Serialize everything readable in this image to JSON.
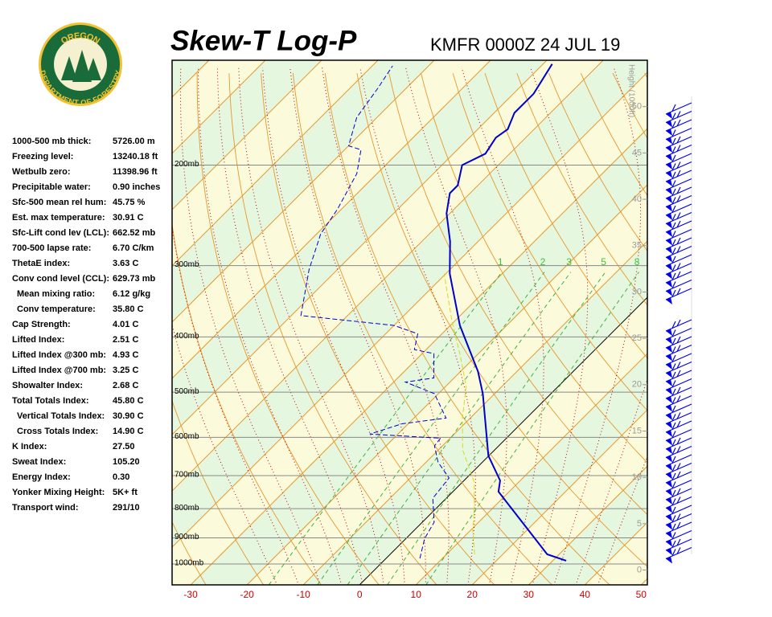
{
  "logo": {
    "top": "OREGON",
    "bottom": "DEPARTMENT OF FORESTRY"
  },
  "stats": [
    [
      "1000-500 mb thick:",
      "5726.00 m"
    ],
    [
      "Freezing level:",
      "13240.18 ft"
    ],
    [
      "Wetbulb zero:",
      "11398.96 ft"
    ],
    [
      "Precipitable water:",
      "0.90 inches"
    ],
    [
      "Sfc-500 mean rel hum:",
      "45.75 %"
    ],
    [
      "Est. max temperature:",
      "30.91 C"
    ],
    [
      "Sfc-Lift cond lev (LCL):",
      "662.52 mb"
    ],
    [
      "700-500 lapse rate:",
      "6.70 C/km"
    ],
    [
      "ThetaE index:",
      "3.63 C"
    ],
    [
      "Conv cond level (CCL):",
      "629.73 mb"
    ],
    [
      "Mean mixing ratio:",
      "6.12 g/kg"
    ],
    [
      "Conv temperature:",
      "35.80 C"
    ],
    [
      "Cap Strength:",
      "4.01 C"
    ],
    [
      "Lifted Index:",
      "2.51 C"
    ],
    [
      "Lifted Index @300 mb:",
      "4.93 C"
    ],
    [
      "Lifted Index @700 mb:",
      "3.25 C"
    ],
    [
      "Showalter Index:",
      "2.68 C"
    ],
    [
      "Total Totals Index:",
      "45.80 C"
    ],
    [
      "Vertical Totals Index:",
      "30.90 C"
    ],
    [
      "Cross Totals Index:",
      "14.90 C"
    ],
    [
      "K Index:",
      "27.50"
    ],
    [
      "Sweat Index:",
      "105.20"
    ],
    [
      "Energy Index:",
      "0.30"
    ],
    [
      "Yonker Mixing Height:",
      "5K+ ft"
    ],
    [
      "Transport wind:",
      "291/10"
    ]
  ],
  "chart_data": {
    "type": "skewt",
    "title": "Skew-T Log-P",
    "subtitle": "KMFR 0000Z 24 JUL 19",
    "xlim": [
      -33.3,
      51.1
    ],
    "xticks": [
      -30,
      -20,
      -10,
      0,
      10,
      20,
      30,
      40,
      50
    ],
    "ylim": [
      1088,
      131
    ],
    "log_y": true,
    "yticks": [
      {
        "value": 200,
        "label": "200mb"
      },
      {
        "value": 300,
        "label": "300mb"
      },
      {
        "value": 400,
        "label": "400mb"
      },
      {
        "value": 500,
        "label": "500mb"
      },
      {
        "value": 600,
        "label": "600mb"
      },
      {
        "value": 700,
        "label": "700mb"
      },
      {
        "value": 800,
        "label": "800mb"
      },
      {
        "value": 900,
        "label": "900mb"
      },
      {
        "value": 1000,
        "label": "1000mb"
      }
    ],
    "y2_label": "Height (1000ft)",
    "y2lim": [
      -1.6,
      55
    ],
    "y2ticks": [
      0,
      5,
      10,
      15,
      20,
      25,
      30,
      35,
      40,
      45,
      50
    ],
    "mixing_ratio_labels": [
      1,
      2,
      3,
      5,
      8
    ],
    "series": [
      {
        "color": "#0000cc",
        "dashed": false,
        "pressure": [
          987,
          962,
          747,
          714,
          646,
          503,
          460,
          424,
          382,
          310,
          272,
          243,
          224,
          217,
          200,
          191,
          179,
          173,
          162,
          150,
          133
        ],
        "values": [
          32.4,
          27.9,
          8.1,
          6.4,
          -0.1,
          -12.1,
          -16.9,
          -21.9,
          -28.3,
          -39.3,
          -45,
          -50.6,
          -53.6,
          -53.6,
          -56.4,
          -54.3,
          -55.3,
          -54.7,
          -56.4,
          -56.4,
          -58.4
        ]
      },
      {
        "color": "#0000cc",
        "dashed": true,
        "pressure": [
          978,
          902,
          845,
          767,
          707,
          663,
          621,
          602,
          592,
          568,
          555,
          503,
          480,
          472,
          428,
          421,
          395,
          382,
          367,
          305,
          264,
          239,
          207,
          188,
          185,
          165,
          147,
          134
        ],
        "values": [
          6.0,
          3.3,
          2.1,
          -2.4,
          -3.1,
          -7.9,
          -11.4,
          -11.7,
          -25,
          -21.1,
          -14.3,
          -20.7,
          -27.9,
          -23.6,
          -27.9,
          -32.1,
          -34.3,
          -40,
          -58.3,
          -65,
          -69.3,
          -70.7,
          -73.6,
          -77.1,
          -80,
          -83.6,
          -85,
          -86.4
        ]
      },
      {
        "color": "#d8d820",
        "dashed": true,
        "pressure": [
          962,
          873,
          792,
          719,
          631,
          555,
          488,
          428,
          376,
          310
        ],
        "values": [
          15.0,
          10.4,
          6.4,
          2.1,
          -5.7,
          -11.4,
          -16.4,
          -23.3,
          -30.4,
          -40.3
        ]
      }
    ]
  }
}
